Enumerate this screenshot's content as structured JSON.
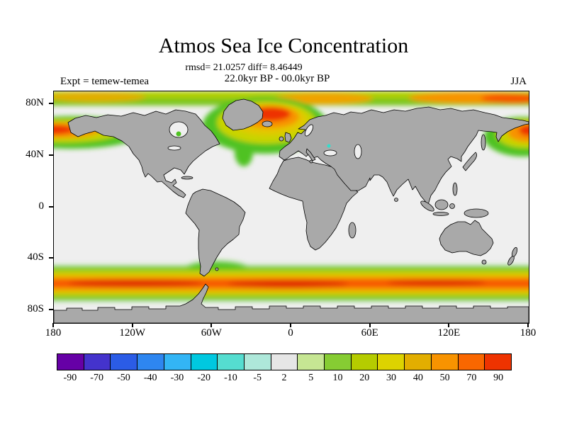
{
  "chart_data": {
    "type": "heatmap",
    "title": "Atmos Sea Ice Concentration",
    "stats_line": "rmsd= 21.0257 diff= 8.46449",
    "rmsd": 21.0257,
    "diff": 8.46449,
    "period_line": "22.0kyr BP - 00.0kyr BP",
    "experiment_label": "Expt = temew-temea",
    "season_label": "JJA",
    "x_axis": {
      "tick_labels": [
        "180",
        "120W",
        "60W",
        "0",
        "60E",
        "120E",
        "180"
      ],
      "tick_values": [
        -180,
        -120,
        -60,
        0,
        60,
        120,
        180
      ],
      "range_deg": [
        -180,
        180
      ]
    },
    "y_axis": {
      "tick_labels": [
        "80N",
        "40N",
        "0",
        "40S",
        "80S"
      ],
      "tick_values": [
        80,
        40,
        0,
        -40,
        -80
      ],
      "range_deg": [
        90,
        -90
      ]
    },
    "colorbar": {
      "tick_labels": [
        "-90",
        "-70",
        "-50",
        "-40",
        "-30",
        "-20",
        "-10",
        "-5",
        "2",
        "5",
        "10",
        "20",
        "30",
        "40",
        "50",
        "70",
        "90"
      ],
      "cell_colors": [
        "#6600a6",
        "#4433cc",
        "#2b5ce6",
        "#2e86f0",
        "#33b5f5",
        "#00c8e0",
        "#55ddd0",
        "#aee8da",
        "#e6e6e6",
        "#c6e693",
        "#86cc33",
        "#b5cc00",
        "#ddd300",
        "#e2ae00",
        "#f89300",
        "#f96700",
        "#ee3300"
      ]
    },
    "map_colors": {
      "land": "#a9a9a9",
      "ocean_no_change": "#efefef",
      "coastline": "#000000"
    },
    "regions": [
      {
        "name": "Southern Ocean circumpolar band",
        "lat_range": [
          -66,
          -48
        ],
        "lon_range": [
          -180,
          180
        ],
        "peak_value": 90,
        "description": "continuous strong positive band, red core with yellow and green fringes"
      },
      {
        "name": "North Atlantic / Greenland-Iceland-Norwegian seas",
        "lat_range": [
          50,
          80
        ],
        "lon_range": [
          -55,
          15
        ],
        "peak_value": 90,
        "description": "large orange-red maximum around Greenland with green tongue extending south"
      },
      {
        "name": "Arctic margin strip",
        "lat_range": [
          76,
          90
        ],
        "lon_range": [
          -180,
          180
        ],
        "peak_value": 40,
        "description": "green-yellow strip along top edge, orange near eastern Arctic"
      },
      {
        "name": "Bering Sea / NW Pacific at left map edge",
        "lat_range": [
          52,
          66
        ],
        "lon_range": [
          -180,
          -150
        ],
        "peak_value": 70
      },
      {
        "name": "Sea of Okhotsk / Japan at right map edge",
        "lat_range": [
          42,
          62
        ],
        "lon_range": [
          140,
          180
        ],
        "peak_value": 70
      }
    ]
  }
}
